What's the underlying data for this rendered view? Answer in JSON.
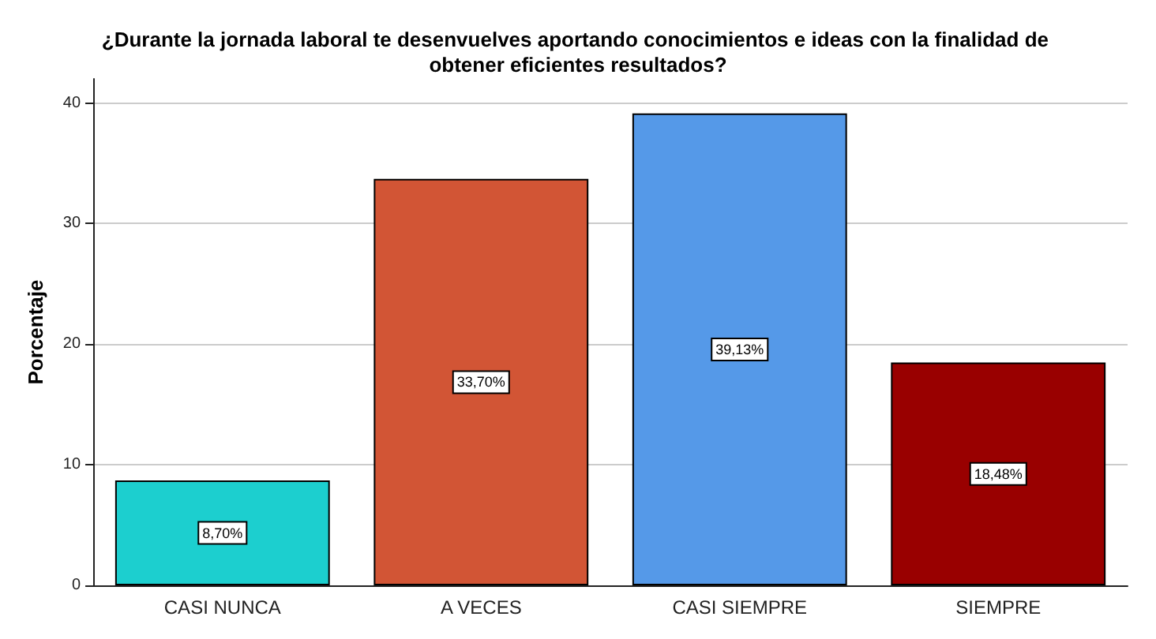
{
  "chart_data": {
    "type": "bar",
    "title": "¿Durante la jornada laboral te desenvuelves aportando conocimientos e ideas con la finalidad de obtener eficientes resultados?",
    "ylabel": "Porcentaje",
    "categories": [
      "CASI NUNCA",
      "A VECES",
      "CASI SIEMPRE",
      "SIEMPRE"
    ],
    "values": [
      8.7,
      33.7,
      39.13,
      18.48
    ],
    "colors": [
      "#1ccfcf",
      "#d25535",
      "#5599e8",
      "#990000"
    ],
    "value_labels": [
      "8,70%",
      "33,70%",
      "39,13%",
      "18,48%"
    ],
    "ylim": [
      0,
      42
    ],
    "yticks": [
      0,
      10,
      20,
      30,
      40
    ],
    "grid": "y"
  }
}
